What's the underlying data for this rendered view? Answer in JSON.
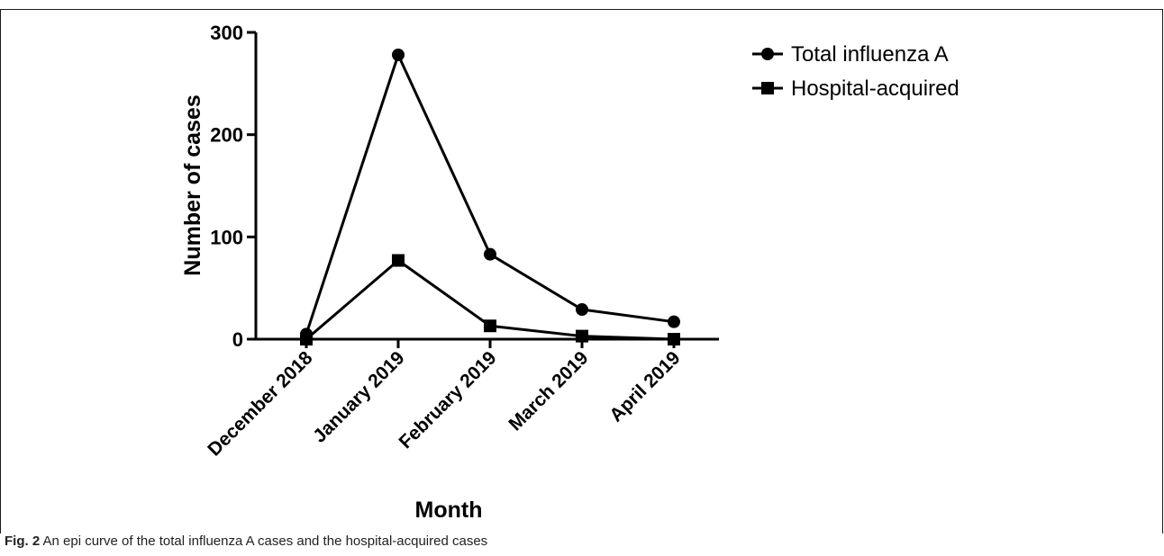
{
  "chart_data": {
    "type": "line",
    "categories": [
      "December 2018",
      "January 2019",
      "February 2019",
      "March 2019",
      "April 2019"
    ],
    "series": [
      {
        "name": "Total influenza A",
        "marker": "circle",
        "values": [
          5,
          278,
          83,
          29,
          17
        ]
      },
      {
        "name": "Hospital-acquired",
        "marker": "square",
        "values": [
          0,
          77,
          13,
          3,
          0
        ]
      }
    ],
    "xlabel": "Month",
    "ylabel": "Number of cases",
    "ylim": [
      0,
      300
    ],
    "yticks": [
      "0",
      "100",
      "200",
      "300"
    ],
    "grid": false,
    "legend_position": "top-right",
    "line_color": "#000000"
  },
  "caption": {
    "label": "Fig. 2",
    "text": "An epi curve of the total influenza A cases and the hospital-acquired cases"
  }
}
